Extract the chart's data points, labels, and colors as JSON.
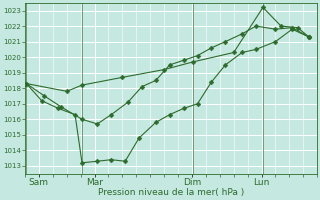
{
  "bg_color": "#c5e8e0",
  "grid_color": "#a0d0c8",
  "line_color": "#2d6b2d",
  "marker_color": "#2d6b2d",
  "xlabel": "Pression niveau de la mer( hPa )",
  "ylim": [
    1012.5,
    1023.5
  ],
  "yticks": [
    1013,
    1014,
    1015,
    1016,
    1017,
    1018,
    1019,
    1020,
    1021,
    1022,
    1023
  ],
  "xtick_labels": [
    "Sam",
    "Mar",
    "Dim",
    "Lun"
  ],
  "xtick_pos": [
    0.5,
    2.5,
    6.0,
    8.5
  ],
  "xlim": [
    0,
    10.5
  ],
  "vline_positions": [
    0.05,
    2.05,
    6.05,
    8.55
  ],
  "line1_x": [
    0.05,
    0.6,
    1.2,
    1.8,
    2.05,
    2.6,
    3.1,
    3.6,
    4.1,
    4.7,
    5.2,
    5.7,
    6.2,
    6.7,
    7.2,
    7.8,
    8.3,
    9.0,
    9.6,
    10.2
  ],
  "line1_y": [
    1018.3,
    1017.2,
    1016.7,
    1016.3,
    1013.2,
    1013.3,
    1013.4,
    1013.3,
    1014.8,
    1015.8,
    1016.3,
    1016.7,
    1017.0,
    1018.4,
    1019.5,
    1020.3,
    1020.5,
    1021.0,
    1021.8,
    1021.3
  ],
  "line2_x": [
    0.05,
    0.7,
    1.3,
    2.05,
    2.6,
    3.1,
    3.7,
    4.2,
    4.7,
    5.2,
    5.7,
    6.2,
    6.7,
    7.2,
    7.8,
    8.3,
    9.0,
    9.6,
    10.2
  ],
  "line2_y": [
    1018.3,
    1017.5,
    1016.8,
    1016.0,
    1015.7,
    1016.3,
    1017.1,
    1018.1,
    1018.5,
    1019.5,
    1019.8,
    1020.1,
    1020.6,
    1021.0,
    1021.5,
    1022.0,
    1021.8,
    1021.9,
    1021.3
  ],
  "line3_x": [
    0.05,
    1.5,
    2.05,
    3.5,
    5.0,
    6.05,
    7.5,
    8.55,
    9.2,
    9.8,
    10.2
  ],
  "line3_y": [
    1018.3,
    1017.8,
    1018.2,
    1018.7,
    1019.2,
    1019.7,
    1020.3,
    1023.2,
    1022.0,
    1021.9,
    1021.3
  ],
  "figsize": [
    3.2,
    2.0
  ],
  "dpi": 100
}
